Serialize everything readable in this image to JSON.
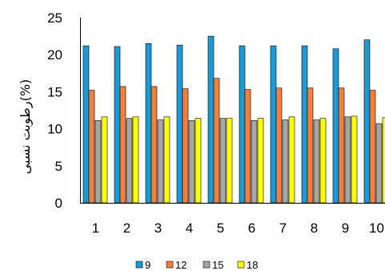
{
  "chart_data": {
    "type": "bar",
    "categories": [
      "1",
      "2",
      "3",
      "4",
      "5",
      "6",
      "7",
      "8",
      "9",
      "10"
    ],
    "series": [
      {
        "name": "9",
        "color": "#1b9ad6",
        "values": [
          21.2,
          21.1,
          21.5,
          21.3,
          22.5,
          21.2,
          21.2,
          21.2,
          20.8,
          22.0
        ]
      },
      {
        "name": "12",
        "color": "#f47e3c",
        "values": [
          15.2,
          15.7,
          15.7,
          15.4,
          16.8,
          15.3,
          15.5,
          15.5,
          15.5,
          15.2
        ]
      },
      {
        "name": "15",
        "color": "#a6a6a6",
        "values": [
          11.1,
          11.4,
          11.2,
          11.1,
          11.4,
          11.1,
          11.2,
          11.2,
          11.6,
          10.7
        ]
      },
      {
        "name": "18",
        "color": "#ffff00",
        "values": [
          11.6,
          11.6,
          11.6,
          11.4,
          11.4,
          11.4,
          11.6,
          11.4,
          11.7,
          11.5
        ]
      }
    ],
    "yticks": [
      0,
      5,
      10,
      15,
      20,
      25
    ],
    "ylim": [
      0,
      25
    ],
    "ylabel": "رطوبت نسبی(%)",
    "xlabel": "",
    "title": "",
    "legend_position": "bottom",
    "grid": false
  }
}
